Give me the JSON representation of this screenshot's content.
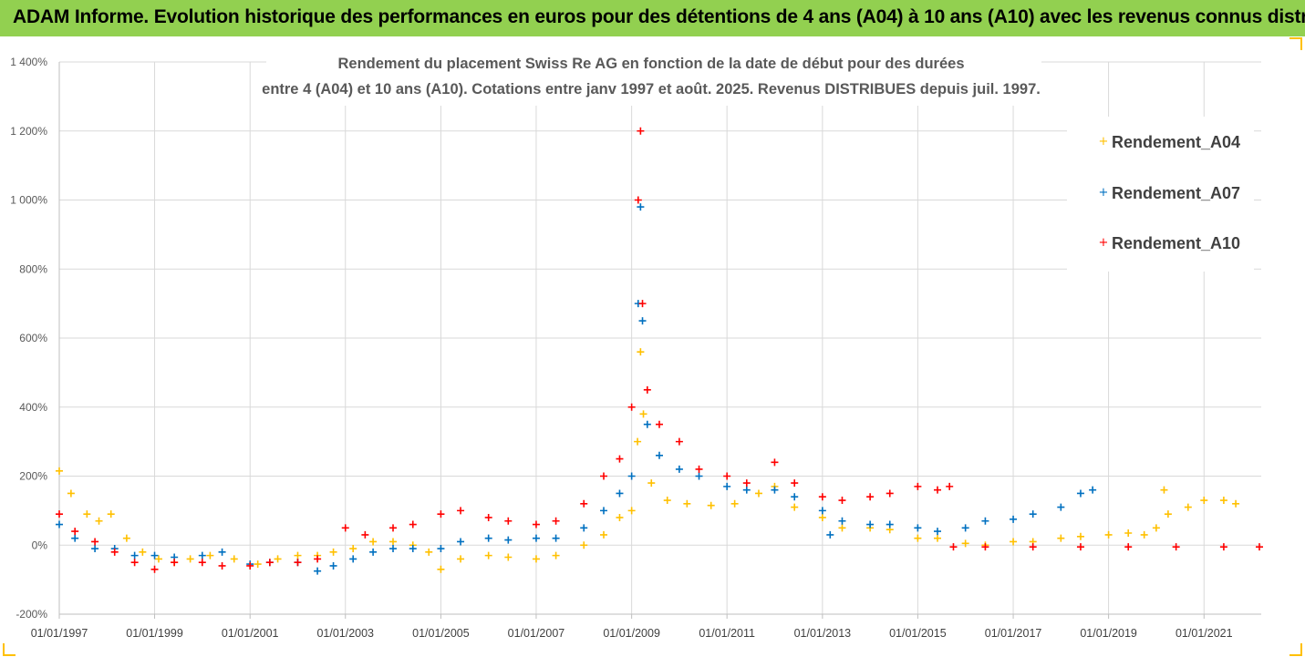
{
  "banner": {
    "title": "ADAM Informe. Evolution historique des performances en euros pour des détentions de 4 ans (A04) à 10 ans (A10) avec les revenus connus distribués"
  },
  "colors": {
    "banner": "#92d050",
    "A04": "#ffc000",
    "A07": "#0070c0",
    "A10": "#ff0000",
    "grid": "#d9d9d9",
    "axis": "#bfbfbf"
  },
  "chart_data": {
    "type": "scatter",
    "title_line1": "Rendement du placement Swiss Re AG en fonction de la date de début pour des durées",
    "title_line2": "entre 4 (A04) et 10 ans (A10). Cotations entre janv 1997 et août. 2025. Revenus DISTRIBUES depuis juil. 1997.",
    "marker": "+",
    "x_type": "date",
    "xlim": [
      "1997-01-01",
      "2022-03-15"
    ],
    "ylim": [
      -200,
      1400
    ],
    "y_unit": "%",
    "grid": true,
    "legend_position": "top-right",
    "y_ticks": [
      {
        "value": 1400,
        "label": "1 400%"
      },
      {
        "value": 1200,
        "label": "1 200%"
      },
      {
        "value": 1000,
        "label": "1 000%"
      },
      {
        "value": 800,
        "label": "800%"
      },
      {
        "value": 600,
        "label": "600%"
      },
      {
        "value": 400,
        "label": "400%"
      },
      {
        "value": 200,
        "label": "200%"
      },
      {
        "value": 0,
        "label": "0%"
      },
      {
        "value": -200,
        "label": "-200%"
      }
    ],
    "x_ticks": [
      {
        "value": "1997-01-01",
        "label": "01/01/1997"
      },
      {
        "value": "1999-01-01",
        "label": "01/01/1999"
      },
      {
        "value": "2001-01-01",
        "label": "01/01/2001"
      },
      {
        "value": "2003-01-01",
        "label": "01/01/2003"
      },
      {
        "value": "2005-01-01",
        "label": "01/01/2005"
      },
      {
        "value": "2007-01-01",
        "label": "01/01/2007"
      },
      {
        "value": "2009-01-01",
        "label": "01/01/2009"
      },
      {
        "value": "2011-01-01",
        "label": "01/01/2011"
      },
      {
        "value": "2013-01-01",
        "label": "01/01/2013"
      },
      {
        "value": "2015-01-01",
        "label": "01/01/2015"
      },
      {
        "value": "2017-01-01",
        "label": "01/01/2017"
      },
      {
        "value": "2019-01-01",
        "label": "01/01/2019"
      },
      {
        "value": "2021-01-01",
        "label": "01/01/2021"
      }
    ],
    "series": [
      {
        "name": "Rendement_A04",
        "color": "#ffc000",
        "points": [
          [
            "1997-01-01",
            215
          ],
          [
            "1997-04-01",
            150
          ],
          [
            "1997-08-01",
            90
          ],
          [
            "1997-11-01",
            70
          ],
          [
            "1998-02-01",
            90
          ],
          [
            "1998-06-01",
            20
          ],
          [
            "1998-10-01",
            -20
          ],
          [
            "1999-02-01",
            -40
          ],
          [
            "1999-06-01",
            -50
          ],
          [
            "1999-10-01",
            -40
          ],
          [
            "2000-03-01",
            -30
          ],
          [
            "2000-09-01",
            -40
          ],
          [
            "2001-03-01",
            -55
          ],
          [
            "2001-08-01",
            -40
          ],
          [
            "2002-01-01",
            -30
          ],
          [
            "2002-06-01",
            -30
          ],
          [
            "2002-10-01",
            -20
          ],
          [
            "2003-03-01",
            -10
          ],
          [
            "2003-08-01",
            10
          ],
          [
            "2004-01-01",
            10
          ],
          [
            "2004-06-01",
            0
          ],
          [
            "2004-10-01",
            -20
          ],
          [
            "2005-01-01",
            -70
          ],
          [
            "2005-06-01",
            -40
          ],
          [
            "2006-01-01",
            -30
          ],
          [
            "2006-06-01",
            -35
          ],
          [
            "2007-01-01",
            -40
          ],
          [
            "2007-06-01",
            -30
          ],
          [
            "2008-01-01",
            0
          ],
          [
            "2008-06-01",
            30
          ],
          [
            "2008-10-01",
            80
          ],
          [
            "2009-01-01",
            100
          ],
          [
            "2009-02-15",
            300
          ],
          [
            "2009-03-10",
            560
          ],
          [
            "2009-04-01",
            380
          ],
          [
            "2009-06-01",
            180
          ],
          [
            "2009-10-01",
            130
          ],
          [
            "2010-03-01",
            120
          ],
          [
            "2010-09-01",
            115
          ],
          [
            "2011-03-01",
            120
          ],
          [
            "2011-09-01",
            150
          ],
          [
            "2012-01-01",
            170
          ],
          [
            "2012-06-01",
            110
          ],
          [
            "2013-01-01",
            80
          ],
          [
            "2013-06-01",
            50
          ],
          [
            "2014-01-01",
            50
          ],
          [
            "2014-06-01",
            45
          ],
          [
            "2015-01-01",
            20
          ],
          [
            "2015-06-01",
            20
          ],
          [
            "2016-01-01",
            5
          ],
          [
            "2016-06-01",
            0
          ],
          [
            "2017-01-01",
            10
          ],
          [
            "2017-06-01",
            10
          ],
          [
            "2018-01-01",
            20
          ],
          [
            "2018-06-01",
            25
          ],
          [
            "2019-01-01",
            30
          ],
          [
            "2019-06-01",
            35
          ],
          [
            "2019-10-01",
            30
          ],
          [
            "2020-01-01",
            50
          ],
          [
            "2020-03-01",
            160
          ],
          [
            "2020-04-01",
            90
          ],
          [
            "2020-09-01",
            110
          ],
          [
            "2021-01-01",
            130
          ],
          [
            "2021-06-01",
            130
          ],
          [
            "2021-09-01",
            120
          ]
        ]
      },
      {
        "name": "Rendement_A07",
        "color": "#0070c0",
        "points": [
          [
            "1997-01-01",
            60
          ],
          [
            "1997-05-01",
            20
          ],
          [
            "1997-10-01",
            -10
          ],
          [
            "1998-03-01",
            -10
          ],
          [
            "1998-08-01",
            -30
          ],
          [
            "1999-01-01",
            -30
          ],
          [
            "1999-06-01",
            -35
          ],
          [
            "2000-01-01",
            -30
          ],
          [
            "2000-06-01",
            -20
          ],
          [
            "2001-01-01",
            -55
          ],
          [
            "2001-06-01",
            -50
          ],
          [
            "2002-01-01",
            -50
          ],
          [
            "2002-06-01",
            -75
          ],
          [
            "2002-10-01",
            -60
          ],
          [
            "2003-03-01",
            -40
          ],
          [
            "2003-08-01",
            -20
          ],
          [
            "2004-01-01",
            -10
          ],
          [
            "2004-06-01",
            -10
          ],
          [
            "2005-01-01",
            -10
          ],
          [
            "2005-06-01",
            10
          ],
          [
            "2006-01-01",
            20
          ],
          [
            "2006-06-01",
            15
          ],
          [
            "2007-01-01",
            20
          ],
          [
            "2007-06-01",
            20
          ],
          [
            "2008-01-01",
            50
          ],
          [
            "2008-06-01",
            100
          ],
          [
            "2008-10-01",
            150
          ],
          [
            "2009-01-01",
            200
          ],
          [
            "2009-02-20",
            700
          ],
          [
            "2009-03-10",
            980
          ],
          [
            "2009-03-25",
            650
          ],
          [
            "2009-05-01",
            350
          ],
          [
            "2009-08-01",
            260
          ],
          [
            "2010-01-01",
            220
          ],
          [
            "2010-06-01",
            200
          ],
          [
            "2011-01-01",
            170
          ],
          [
            "2011-06-01",
            160
          ],
          [
            "2012-01-01",
            160
          ],
          [
            "2012-06-01",
            140
          ],
          [
            "2013-01-01",
            100
          ],
          [
            "2013-03-01",
            30
          ],
          [
            "2013-06-01",
            70
          ],
          [
            "2014-01-01",
            60
          ],
          [
            "2014-06-01",
            60
          ],
          [
            "2015-01-01",
            50
          ],
          [
            "2015-06-01",
            40
          ],
          [
            "2016-01-01",
            50
          ],
          [
            "2016-06-01",
            70
          ],
          [
            "2017-01-01",
            75
          ],
          [
            "2017-06-01",
            90
          ],
          [
            "2018-01-01",
            110
          ],
          [
            "2018-06-01",
            150
          ],
          [
            "2018-09-01",
            160
          ]
        ]
      },
      {
        "name": "Rendement_A10",
        "color": "#ff0000",
        "points": [
          [
            "1997-01-01",
            90
          ],
          [
            "1997-05-01",
            40
          ],
          [
            "1997-10-01",
            10
          ],
          [
            "1998-03-01",
            -20
          ],
          [
            "1998-08-01",
            -50
          ],
          [
            "1999-01-01",
            -70
          ],
          [
            "1999-06-01",
            -50
          ],
          [
            "2000-01-01",
            -50
          ],
          [
            "2000-06-01",
            -60
          ],
          [
            "2001-01-01",
            -60
          ],
          [
            "2001-06-01",
            -50
          ],
          [
            "2002-01-01",
            -50
          ],
          [
            "2002-06-01",
            -40
          ],
          [
            "2003-01-01",
            50
          ],
          [
            "2003-06-01",
            30
          ],
          [
            "2004-01-01",
            50
          ],
          [
            "2004-06-01",
            60
          ],
          [
            "2005-01-01",
            90
          ],
          [
            "2005-06-01",
            100
          ],
          [
            "2006-01-01",
            80
          ],
          [
            "2006-06-01",
            70
          ],
          [
            "2007-01-01",
            60
          ],
          [
            "2007-06-01",
            70
          ],
          [
            "2008-01-01",
            120
          ],
          [
            "2008-06-01",
            200
          ],
          [
            "2008-10-01",
            250
          ],
          [
            "2009-01-01",
            400
          ],
          [
            "2009-02-20",
            1000
          ],
          [
            "2009-03-10",
            1200
          ],
          [
            "2009-03-25",
            700
          ],
          [
            "2009-05-01",
            450
          ],
          [
            "2009-08-01",
            350
          ],
          [
            "2010-01-01",
            300
          ],
          [
            "2010-06-01",
            220
          ],
          [
            "2011-01-01",
            200
          ],
          [
            "2011-06-01",
            180
          ],
          [
            "2012-01-01",
            240
          ],
          [
            "2012-06-01",
            180
          ],
          [
            "2013-01-01",
            140
          ],
          [
            "2013-06-01",
            130
          ],
          [
            "2014-01-01",
            140
          ],
          [
            "2014-06-01",
            150
          ],
          [
            "2015-01-01",
            170
          ],
          [
            "2015-06-01",
            160
          ],
          [
            "2015-09-01",
            170
          ],
          [
            "2015-10-01",
            -5
          ],
          [
            "2016-06-01",
            -5
          ],
          [
            "2017-06-01",
            -5
          ],
          [
            "2018-06-01",
            -5
          ],
          [
            "2019-06-01",
            -5
          ],
          [
            "2020-06-01",
            -5
          ],
          [
            "2021-06-01",
            -5
          ],
          [
            "2022-03-01",
            -5
          ]
        ]
      }
    ]
  }
}
